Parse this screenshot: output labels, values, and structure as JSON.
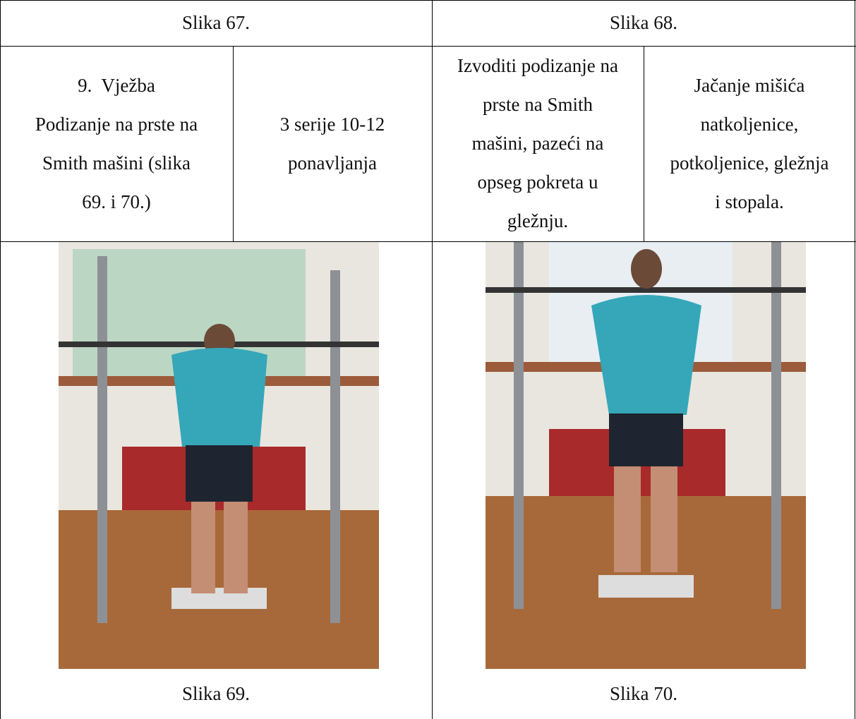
{
  "table": {
    "rows": [
      [
        [
          "Slika 67."
        ],
        [
          "Slika 68."
        ]
      ],
      [
        [
          "9.  Vježba",
          "Podizanje na prste na",
          "Smith mašini (slika",
          "69. i 70.)"
        ],
        [
          "3 serije 10-12",
          "ponavljanja"
        ],
        [
          "Izvoditi podizanje na",
          "prste na Smith",
          "mašini, pazeći na",
          "opseg pokreta u",
          "gležnju."
        ],
        [
          "Jačanje mišića",
          "natkoljenice,",
          "potkoljenice, gležnja",
          "i stopala."
        ]
      ],
      [
        [
          "Slika 69."
        ],
        [
          "Slika 70."
        ]
      ]
    ]
  }
}
